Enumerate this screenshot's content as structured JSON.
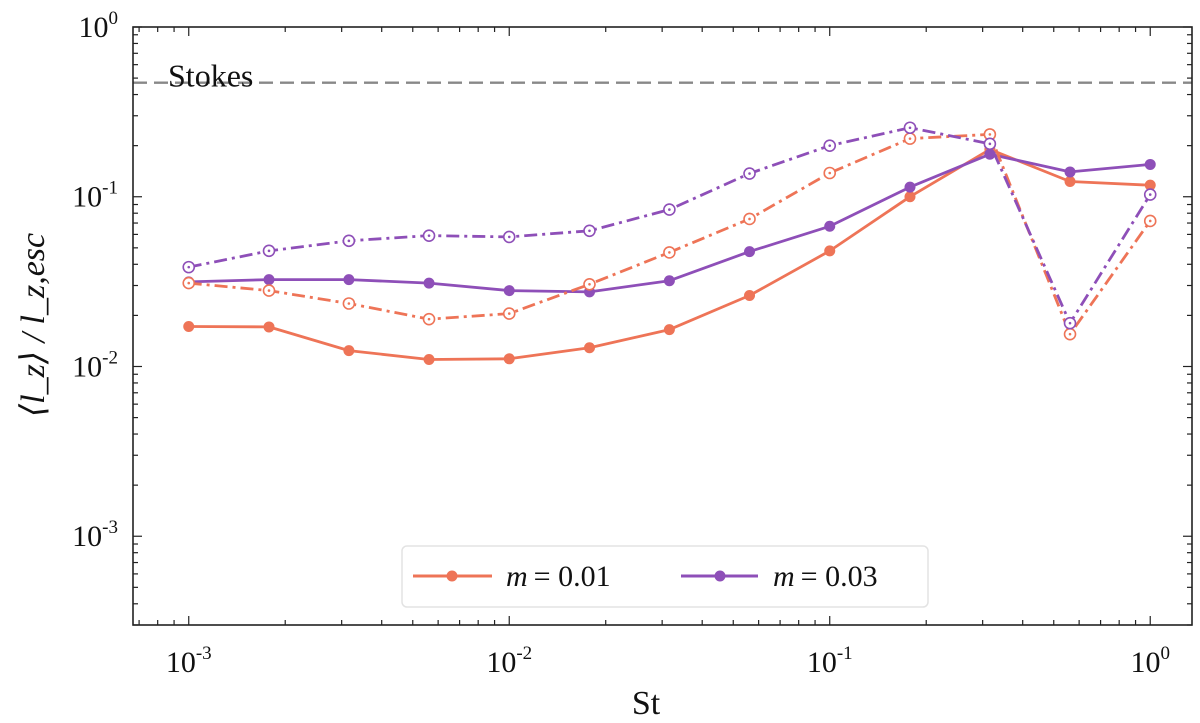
{
  "chart_data": {
    "type": "line",
    "title": "",
    "xlabel": "St",
    "ylabel": "⟨l_z⟩ / l_z,esc",
    "xscale": "log",
    "yscale": "log",
    "xlim": [
      0.00067,
      1.35
    ],
    "ylim": [
      0.0003,
      1.0
    ],
    "xticks": [
      {
        "value": 0.001,
        "base": "10",
        "exp": "-3"
      },
      {
        "value": 0.01,
        "base": "10",
        "exp": "-2"
      },
      {
        "value": 0.1,
        "base": "10",
        "exp": "-1"
      },
      {
        "value": 1,
        "base": "10",
        "exp": "0"
      }
    ],
    "yticks": [
      {
        "value": 0.001,
        "base": "10",
        "exp": "-3"
      },
      {
        "value": 0.01,
        "base": "10",
        "exp": "-2"
      },
      {
        "value": 0.1,
        "base": "10",
        "exp": "-1"
      },
      {
        "value": 1,
        "base": "10",
        "exp": "0"
      }
    ],
    "x": [
      0.001,
      0.00178,
      0.00316,
      0.00562,
      0.01,
      0.0178,
      0.0316,
      0.0562,
      0.1,
      0.178,
      0.316,
      0.562,
      1.0
    ],
    "series": [
      {
        "name": "m = 0.01 (solid)",
        "color": "#EE7457",
        "style": "solid",
        "marker": "filled",
        "values": [
          0.0172,
          0.0171,
          0.0124,
          0.011,
          0.0111,
          0.0129,
          0.0165,
          0.0262,
          0.048,
          0.1,
          0.19,
          0.123,
          0.117
        ]
      },
      {
        "name": "m = 0.03 (solid)",
        "color": "#8E4FB8",
        "style": "solid",
        "marker": "filled",
        "values": [
          0.0315,
          0.0325,
          0.0325,
          0.031,
          0.028,
          0.0275,
          0.032,
          0.0475,
          0.067,
          0.114,
          0.178,
          0.14,
          0.155
        ]
      },
      {
        "name": "m = 0.01 (dash-dot)",
        "color": "#EE7457",
        "style": "dashdot",
        "marker": "open",
        "values": [
          0.031,
          0.028,
          0.0235,
          0.019,
          0.0205,
          0.0305,
          0.047,
          0.074,
          0.138,
          0.22,
          0.233,
          0.0155,
          0.072
        ]
      },
      {
        "name": "m = 0.03 (dash-dot)",
        "color": "#8E4FB8",
        "style": "dashdot",
        "marker": "open",
        "values": [
          0.0385,
          0.048,
          0.055,
          0.059,
          0.058,
          0.063,
          0.084,
          0.137,
          0.2,
          0.255,
          0.205,
          0.018,
          0.103
        ]
      }
    ],
    "reference_line": {
      "label": "Stokes",
      "value": 0.47,
      "color": "#888888",
      "style": "dashed"
    },
    "legend": {
      "placement": "lower-center",
      "entries": [
        {
          "label": "m = 0.01",
          "var": "m",
          "eq": "= 0.01",
          "color": "#EE7457"
        },
        {
          "label": "m = 0.03",
          "var": "m",
          "eq": "= 0.03",
          "color": "#8E4FB8"
        }
      ]
    }
  }
}
